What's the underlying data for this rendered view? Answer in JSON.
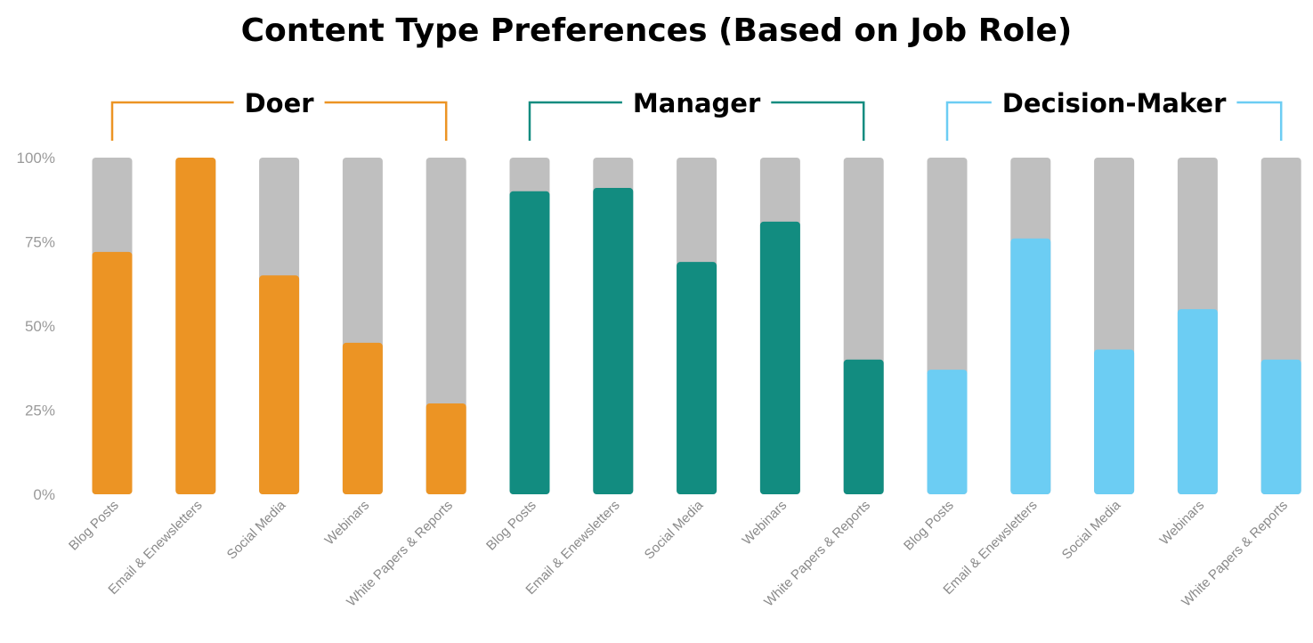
{
  "chart_data": {
    "type": "bar",
    "title": "Content Type Preferences (Based on Job Role)",
    "ylim": [
      0,
      100
    ],
    "yticks": [
      "0%",
      "25%",
      "50%",
      "75%",
      "100%"
    ],
    "background_color": "#bfbfbf",
    "groups": [
      {
        "name": "Doer",
        "color": "#ec9424",
        "categories": [
          "Blog Posts",
          "Email & Enewsletters",
          "Social Media",
          "Webinars",
          "White Papers & Reports"
        ],
        "values": [
          72,
          100,
          65,
          45,
          27
        ]
      },
      {
        "name": "Manager",
        "color": "#128c80",
        "categories": [
          "Blog Posts",
          "Email & Enewsletters",
          "Social Media",
          "Webinars",
          "White Papers & Reports"
        ],
        "values": [
          90,
          91,
          69,
          81,
          40
        ]
      },
      {
        "name": "Decision-Maker",
        "color": "#6ccdf3",
        "categories": [
          "Blog Posts",
          "Email & Enewsletters",
          "Social Media",
          "Webinars",
          "White Papers & Reports"
        ],
        "values": [
          37,
          76,
          43,
          55,
          40
        ]
      }
    ]
  }
}
